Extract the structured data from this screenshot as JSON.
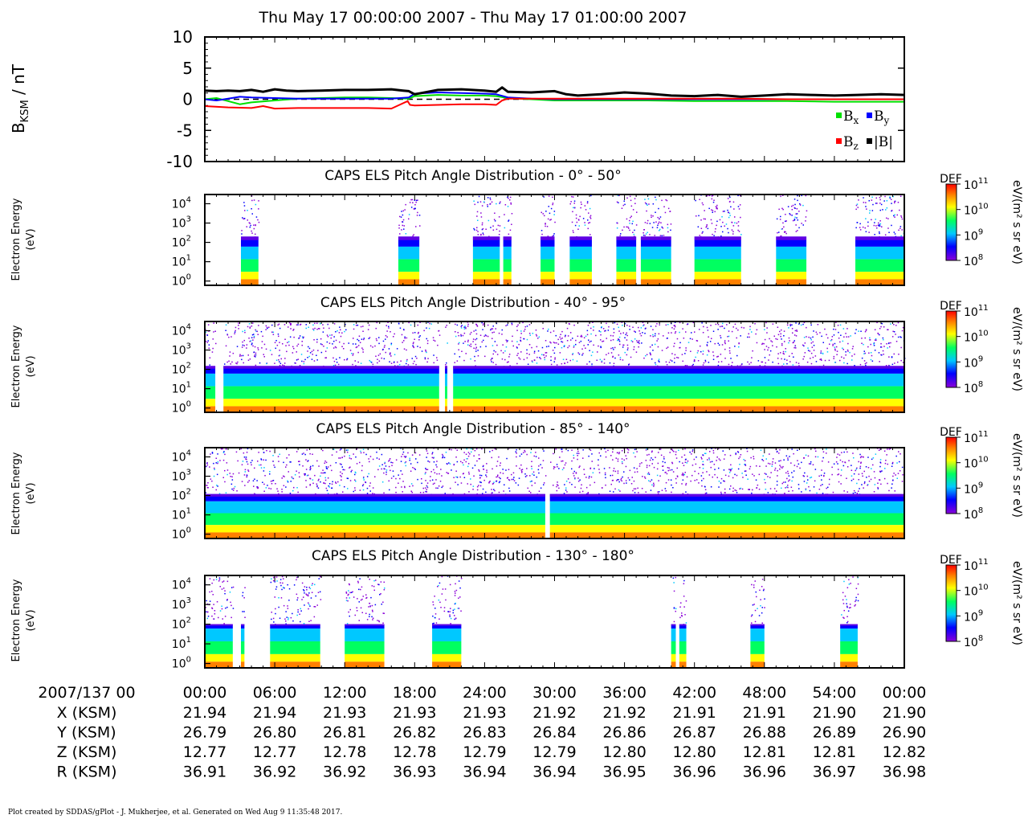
{
  "title": "Thu May 17 00:00:00 2007 - Thu May 17 01:00:00 2007",
  "footer": "Plot created by SDDAS/gPlot - J. Mukherjee, et al.  Generated on Wed Aug 9 11:35:48 2017.",
  "colors": {
    "bx": "#00e000",
    "by": "#0000ff",
    "bz": "#ff0000",
    "bmag": "#000000",
    "colormap": [
      "#8a00d8",
      "#0000ff",
      "#00c8ff",
      "#00ff60",
      "#ffff00",
      "#ff8000",
      "#ff0000"
    ]
  },
  "chart_data": [
    {
      "type": "line",
      "ylabel_main": "B",
      "ylabel_sub": "KSM",
      "ylabel_unit": " / nT",
      "ylim": [
        -10,
        10
      ],
      "yticks": [
        10,
        5,
        0,
        -5,
        -10
      ],
      "xlim": [
        0,
        60
      ],
      "zero_line": "dashed",
      "legend": [
        {
          "label": "B",
          "sub": "x",
          "key": "bx"
        },
        {
          "label": "B",
          "sub": "y",
          "key": "by"
        },
        {
          "label": "B",
          "sub": "z",
          "key": "bz"
        },
        {
          "label": "|B|",
          "sub": "",
          "key": "bmag"
        }
      ],
      "legend_position": "bottom-right",
      "series": [
        {
          "name": "Bx",
          "color_key": "bx",
          "x": [
            0,
            1,
            2,
            3,
            4,
            6,
            8,
            10,
            12,
            14,
            16,
            17.5,
            18,
            20,
            22,
            24,
            25,
            26,
            28,
            30,
            34,
            38,
            42,
            46,
            50,
            54,
            58,
            60
          ],
          "y": [
            0.0,
            0.2,
            -0.3,
            -0.8,
            -0.5,
            -0.2,
            0.1,
            0.2,
            0.3,
            0.3,
            0.2,
            0.1,
            0.5,
            0.7,
            0.6,
            0.6,
            0.5,
            0.2,
            0.0,
            -0.2,
            -0.2,
            -0.2,
            -0.3,
            -0.3,
            -0.3,
            -0.4,
            -0.4,
            -0.4
          ]
        },
        {
          "name": "By",
          "color_key": "by",
          "x": [
            0,
            1,
            2,
            3,
            4,
            6,
            8,
            10,
            12,
            14,
            16,
            17.5,
            18,
            20,
            22,
            24,
            25,
            26,
            28,
            30,
            34,
            38,
            42,
            46,
            50,
            54,
            58,
            60
          ],
          "y": [
            0.0,
            -0.2,
            0.1,
            0.4,
            0.3,
            0.2,
            0.1,
            0.1,
            0.1,
            0.1,
            0.1,
            0.3,
            0.9,
            1.1,
            1.0,
            0.9,
            0.8,
            0.3,
            0.1,
            0.0,
            0.0,
            0.0,
            0.0,
            0.0,
            0.0,
            0.0,
            0.0,
            0.0
          ]
        },
        {
          "name": "Bz",
          "color_key": "bz",
          "x": [
            0,
            2,
            4,
            5,
            6,
            8,
            10,
            12,
            14,
            16,
            17.4,
            17.6,
            18,
            20,
            22,
            24,
            25,
            25.5,
            26,
            28,
            30,
            34,
            38,
            42,
            46,
            50,
            54,
            58,
            60
          ],
          "y": [
            -1.1,
            -1.3,
            -1.4,
            -1.1,
            -1.5,
            -1.4,
            -1.4,
            -1.4,
            -1.4,
            -1.5,
            -0.3,
            -0.9,
            -1.0,
            -0.9,
            -0.8,
            -0.8,
            -0.9,
            -0.2,
            0.1,
            0.1,
            0.1,
            0.1,
            0.1,
            0.1,
            0.1,
            0.0,
            0.0,
            0.0,
            0.0
          ]
        },
        {
          "name": "|B|",
          "color_key": "bmag",
          "x": [
            0,
            1,
            2,
            3,
            4,
            5,
            6,
            7,
            8,
            10,
            12,
            14,
            16,
            17,
            17.5,
            18,
            20,
            22,
            24,
            25,
            25.5,
            26,
            28,
            30,
            31,
            32,
            34,
            36,
            38,
            40,
            42,
            44,
            46,
            48,
            50,
            52,
            54,
            56,
            58,
            60
          ],
          "y": [
            1.4,
            1.3,
            1.4,
            1.3,
            1.5,
            1.2,
            1.6,
            1.4,
            1.3,
            1.4,
            1.5,
            1.5,
            1.6,
            1.4,
            1.3,
            0.8,
            1.5,
            1.6,
            1.4,
            1.2,
            1.9,
            1.2,
            1.1,
            1.3,
            0.8,
            0.6,
            0.8,
            1.1,
            0.9,
            0.6,
            0.5,
            0.7,
            0.4,
            0.6,
            0.8,
            0.7,
            0.6,
            0.7,
            0.8,
            0.7
          ]
        }
      ]
    },
    {
      "type": "heatmap",
      "title": "CAPS ELS Pitch Angle Distribution - 0° - 50°",
      "ylabel_line1": "Electron Energy",
      "ylabel_line2": "(eV)",
      "y_scale": "log",
      "ylim": [
        0.6,
        30000
      ],
      "ytick_exponents": [
        4,
        3,
        2,
        1,
        0
      ],
      "xlim": [
        0,
        60
      ],
      "colorbar": {
        "label": "DEF",
        "unit": "eV/(m² s sr eV)",
        "exponents": [
          11,
          10,
          9,
          8
        ],
        "range": [
          100000000.0,
          100000000000.0
        ]
      },
      "coverage_minutes": [
        [
          3.1,
          4.6
        ],
        [
          16.6,
          18.4
        ],
        [
          23.0,
          25.3
        ],
        [
          25.6,
          26.3
        ],
        [
          28.8,
          30.0
        ],
        [
          31.3,
          33.2
        ],
        [
          35.3,
          37.0
        ],
        [
          37.4,
          40.0
        ],
        [
          42.0,
          46.0
        ],
        [
          49.0,
          51.6
        ],
        [
          55.8,
          60.0
        ]
      ],
      "plasma_top_eV": 200,
      "core_band_eV": [
        3,
        60
      ]
    },
    {
      "type": "heatmap",
      "title": "CAPS ELS Pitch Angle Distribution - 40° - 95°",
      "ylabel_line1": "Electron Energy",
      "ylabel_line2": "(eV)",
      "y_scale": "log",
      "ylim": [
        0.6,
        30000
      ],
      "ytick_exponents": [
        4,
        3,
        2,
        1,
        0
      ],
      "xlim": [
        0,
        60
      ],
      "colorbar": {
        "label": "DEF",
        "unit": "eV/(m² s sr eV)",
        "exponents": [
          11,
          10,
          9,
          8
        ],
        "range": [
          100000000.0,
          100000000000.0
        ]
      },
      "coverage_minutes": [
        [
          0,
          0.9
        ],
        [
          1.6,
          20.1
        ],
        [
          20.6,
          20.8
        ],
        [
          21.3,
          60
        ]
      ],
      "plasma_top_eV": 150,
      "core_band_eV": [
        3,
        60
      ]
    },
    {
      "type": "heatmap",
      "title": "CAPS ELS Pitch Angle Distribution - 85° - 140°",
      "ylabel_line1": "Electron Energy",
      "ylabel_line2": "(eV)",
      "y_scale": "log",
      "ylim": [
        0.6,
        30000
      ],
      "ytick_exponents": [
        4,
        3,
        2,
        1,
        0
      ],
      "xlim": [
        0,
        60
      ],
      "colorbar": {
        "label": "DEF",
        "unit": "eV/(m² s sr eV)",
        "exponents": [
          11,
          10,
          9,
          8
        ],
        "range": [
          100000000.0,
          100000000000.0
        ]
      },
      "coverage_minutes": [
        [
          0,
          29.2
        ],
        [
          29.6,
          60
        ]
      ],
      "plasma_top_eV": 120,
      "core_band_eV": [
        3,
        50
      ]
    },
    {
      "type": "heatmap",
      "title": "CAPS ELS Pitch Angle Distribution - 130° - 180°",
      "ylabel_line1": "Electron Energy",
      "ylabel_line2": "(eV)",
      "y_scale": "log",
      "ylim": [
        0.6,
        30000
      ],
      "ytick_exponents": [
        4,
        3,
        2,
        1,
        0
      ],
      "xlim": [
        0,
        60
      ],
      "colorbar": {
        "label": "DEF",
        "unit": "eV/(m² s sr eV)",
        "exponents": [
          11,
          10,
          9,
          8
        ],
        "range": [
          100000000.0,
          100000000000.0
        ]
      },
      "coverage_minutes": [
        [
          0,
          2.4
        ],
        [
          3.1,
          3.4
        ],
        [
          5.6,
          9.9
        ],
        [
          12.0,
          15.4
        ],
        [
          19.5,
          22.0
        ],
        [
          40.0,
          40.4
        ],
        [
          40.7,
          41.3
        ],
        [
          46.8,
          48.0
        ],
        [
          54.5,
          56.0
        ]
      ],
      "plasma_top_eV": 100,
      "core_band_eV": [
        3,
        60
      ]
    }
  ],
  "ephemeris": {
    "date_label": "2007/137 00",
    "times": [
      "00:00",
      "06:00",
      "12:00",
      "18:00",
      "24:00",
      "30:00",
      "36:00",
      "42:00",
      "48:00",
      "54:00",
      "00:00"
    ],
    "rows": [
      {
        "label": "X (KSM)",
        "values": [
          "21.94",
          "21.94",
          "21.93",
          "21.93",
          "21.93",
          "21.92",
          "21.92",
          "21.91",
          "21.91",
          "21.90",
          "21.90"
        ]
      },
      {
        "label": "Y (KSM)",
        "values": [
          "26.79",
          "26.80",
          "26.81",
          "26.82",
          "26.83",
          "26.84",
          "26.86",
          "26.87",
          "26.88",
          "26.89",
          "26.90"
        ]
      },
      {
        "label": "Z (KSM)",
        "values": [
          "12.77",
          "12.77",
          "12.78",
          "12.78",
          "12.79",
          "12.79",
          "12.80",
          "12.80",
          "12.81",
          "12.81",
          "12.82"
        ]
      },
      {
        "label": "R (KSM)",
        "values": [
          "36.91",
          "36.92",
          "36.92",
          "36.93",
          "36.94",
          "36.94",
          "36.95",
          "36.96",
          "36.96",
          "36.97",
          "36.98"
        ]
      }
    ]
  }
}
